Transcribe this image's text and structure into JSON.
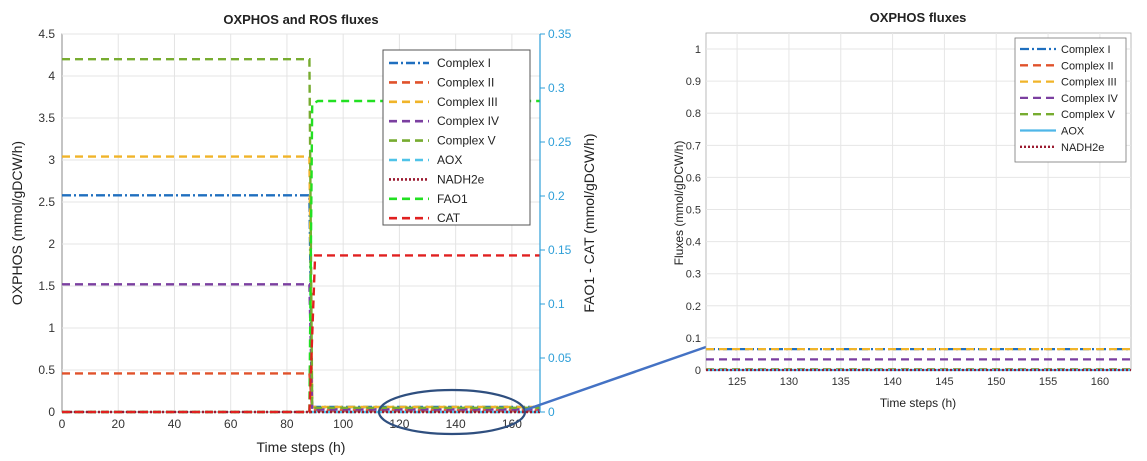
{
  "chart_data": [
    {
      "type": "line",
      "title": "OXPHOS and ROS fluxes",
      "xlabel": "Time steps (h)",
      "ylabel": "OXPHOS (mmol/gDCW/h)",
      "y2label": "FAO1 - CAT (mmol/gDCW/h)",
      "y2color": "#2e9fd8",
      "xlim": [
        0,
        170
      ],
      "ylim": [
        0,
        4.5
      ],
      "y2lim": [
        0,
        0.35
      ],
      "xticks": [
        0,
        20,
        40,
        60,
        80,
        100,
        120,
        140,
        160
      ],
      "yticks": [
        "0",
        "0.5",
        "1",
        "1.5",
        "2",
        "2.5",
        "3",
        "3.5",
        "4",
        "4.5"
      ],
      "y2ticks": [
        "0",
        "0.05",
        "0.1",
        "0.15",
        "0.2",
        "0.25",
        "0.3",
        "0.35"
      ],
      "legend_position": "top-right",
      "grid": true,
      "series": [
        {
          "name": "Complex I",
          "color": "#1f6fbf",
          "dash": "dashdot",
          "axis": "left",
          "x": [
            0,
            88,
            89,
            170
          ],
          "y": [
            2.58,
            2.58,
            0.06,
            0.06
          ]
        },
        {
          "name": "Complex II",
          "color": "#e0522b",
          "dash": "dash",
          "axis": "left",
          "x": [
            0,
            88,
            89,
            170
          ],
          "y": [
            0.46,
            0.46,
            0.02,
            0.02
          ]
        },
        {
          "name": "Complex III",
          "color": "#f0b429",
          "dash": "dash",
          "axis": "left",
          "x": [
            0,
            88,
            89,
            170
          ],
          "y": [
            3.04,
            3.04,
            0.06,
            0.06
          ]
        },
        {
          "name": "Complex IV",
          "color": "#7b3fa0",
          "dash": "dash",
          "axis": "left",
          "x": [
            0,
            88,
            89,
            170
          ],
          "y": [
            1.52,
            1.52,
            0.03,
            0.03
          ]
        },
        {
          "name": "Complex V",
          "color": "#77ac30",
          "dash": "dash",
          "axis": "left",
          "x": [
            0,
            88,
            89,
            170
          ],
          "y": [
            4.2,
            4.2,
            0.05,
            0.05
          ]
        },
        {
          "name": "AOX",
          "color": "#4fc3e8",
          "dash": "dash",
          "axis": "left",
          "x": [
            0,
            170
          ],
          "y": [
            0,
            0
          ]
        },
        {
          "name": "NADH2e",
          "color": "#9b1b30",
          "dash": "dot",
          "axis": "left",
          "x": [
            0,
            170
          ],
          "y": [
            0,
            0
          ]
        },
        {
          "name": "FAO1",
          "color": "#22e022",
          "dash": "dash",
          "axis": "right",
          "x": [
            0,
            88,
            89,
            91,
            170
          ],
          "y": [
            0,
            0,
            0.285,
            0.288,
            0.288
          ]
        },
        {
          "name": "CAT",
          "color": "#e02020",
          "dash": "dash",
          "axis": "right",
          "x": [
            0,
            88,
            90,
            91,
            170
          ],
          "y": [
            0,
            0,
            0.145,
            0.145,
            0.145
          ]
        }
      ]
    },
    {
      "type": "line",
      "title": "OXPHOS fluxes",
      "xlabel": "Time steps (h)",
      "ylabel": "Fluxes (mmol/gDCW/h)",
      "xlim": [
        122,
        163
      ],
      "ylim": [
        0,
        1.05
      ],
      "xticks": [
        125,
        130,
        135,
        140,
        145,
        150,
        155,
        160
      ],
      "yticks": [
        "0",
        "0.1",
        "0.2",
        "0.3",
        "0.4",
        "0.5",
        "0.6",
        "0.7",
        "0.8",
        "0.9",
        "1"
      ],
      "legend_position": "top-right",
      "grid": true,
      "series": [
        {
          "name": "Complex I",
          "color": "#1f6fbf",
          "dash": "dashdot",
          "x": [
            122,
            163
          ],
          "y": [
            0.065,
            0.065
          ]
        },
        {
          "name": "Complex II",
          "color": "#e0522b",
          "dash": "dash",
          "x": [
            122,
            163
          ],
          "y": [
            0.002,
            0.002
          ]
        },
        {
          "name": "Complex III",
          "color": "#f0b429",
          "dash": "dash",
          "x": [
            122,
            163
          ],
          "y": [
            0.065,
            0.065
          ]
        },
        {
          "name": "Complex IV",
          "color": "#7b3fa0",
          "dash": "dash",
          "x": [
            122,
            163
          ],
          "y": [
            0.033,
            0.033
          ]
        },
        {
          "name": "Complex V",
          "color": "#77ac30",
          "dash": "dash",
          "x": [
            122,
            163
          ],
          "y": [
            0.002,
            0.002
          ]
        },
        {
          "name": "AOX",
          "color": "#4fb6e8",
          "dash": "solid",
          "x": [
            122,
            163
          ],
          "y": [
            0,
            0
          ]
        },
        {
          "name": "NADH2e",
          "color": "#9b1b30",
          "dash": "dot",
          "x": [
            122,
            163
          ],
          "y": [
            0,
            0
          ]
        }
      ]
    }
  ]
}
